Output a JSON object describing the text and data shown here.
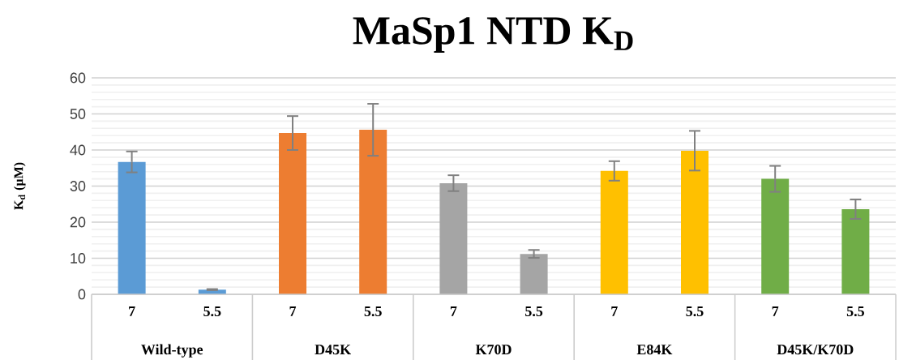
{
  "chart_data": {
    "type": "bar",
    "title": "MaSp1 NTD K$_{D}$",
    "ylabel": "K$_{d}$ (µM)",
    "categories": [
      "7",
      "5.5",
      "7",
      "5.5",
      "7",
      "5.5",
      "7",
      "5.5",
      "7",
      "5.5"
    ],
    "values": [
      36.7,
      1.3,
      44.7,
      45.6,
      30.8,
      11.2,
      34.2,
      39.8,
      32.0,
      23.6
    ],
    "errors": [
      2.9,
      0.15,
      4.7,
      7.2,
      2.2,
      1.1,
      2.7,
      5.5,
      3.6,
      2.7
    ],
    "colors": [
      "#5b9bd5",
      "#5b9bd5",
      "#ed7d31",
      "#ed7d31",
      "#a5a5a5",
      "#a5a5a5",
      "#ffc000",
      "#ffc000",
      "#70ad47",
      "#70ad47"
    ],
    "annotations": [
      "Wild-type",
      "D45K",
      "K70D",
      "E84K",
      "D45K/K70D"
    ],
    "ylim": [
      0,
      60
    ],
    "yticks": [
      0,
      10,
      20,
      30,
      40,
      50,
      60
    ],
    "grid": "y"
  }
}
